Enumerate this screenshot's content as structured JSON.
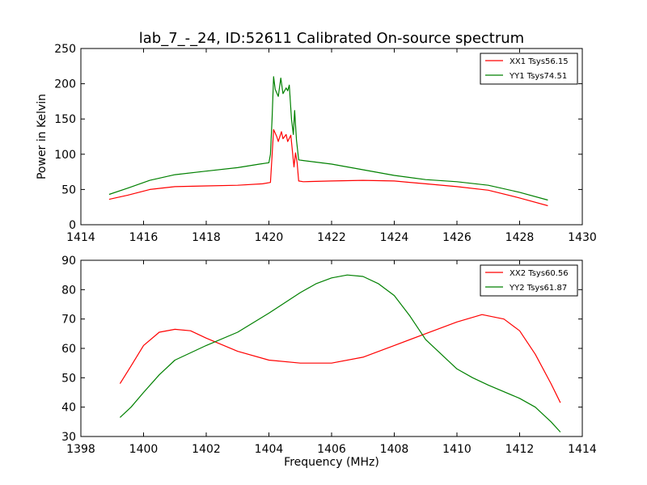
{
  "figure_title": "lab_7_-_24, ID:52611 Calibrated On-source spectrum",
  "chart_data": [
    {
      "type": "line",
      "title": "",
      "xlabel": "",
      "ylabel": "Power in Kelvin",
      "xlim": [
        1414,
        1430
      ],
      "ylim": [
        0,
        250
      ],
      "xticks": [
        "1414",
        "1416",
        "1418",
        "1420",
        "1422",
        "1424",
        "1426",
        "1428",
        "1430"
      ],
      "yticks": [
        "0",
        "50",
        "100",
        "150",
        "200",
        "250"
      ],
      "grid": false,
      "legend_position": "top-right",
      "series": [
        {
          "name": "XX1 Tsys56.15",
          "color": "#ff0000",
          "points": [
            [
              1414.9,
              36
            ],
            [
              1415.5,
              42
            ],
            [
              1416.2,
              50
            ],
            [
              1417,
              54
            ],
            [
              1418,
              55
            ],
            [
              1419,
              56
            ],
            [
              1419.8,
              58
            ],
            [
              1420.05,
              60
            ],
            [
              1420.1,
              98
            ],
            [
              1420.15,
              135
            ],
            [
              1420.25,
              125
            ],
            [
              1420.3,
              118
            ],
            [
              1420.4,
              132
            ],
            [
              1420.45,
              122
            ],
            [
              1420.55,
              128
            ],
            [
              1420.6,
              118
            ],
            [
              1420.7,
              127
            ],
            [
              1420.75,
              104
            ],
            [
              1420.8,
              82
            ],
            [
              1420.85,
              102
            ],
            [
              1420.9,
              88
            ],
            [
              1420.95,
              62
            ],
            [
              1421.1,
              61
            ],
            [
              1422,
              62
            ],
            [
              1423,
              63
            ],
            [
              1424,
              62
            ],
            [
              1425,
              58
            ],
            [
              1426,
              54
            ],
            [
              1427,
              49
            ],
            [
              1428,
              38
            ],
            [
              1428.9,
              27
            ]
          ]
        },
        {
          "name": "YY1 Tsys74.51",
          "color": "#008000",
          "points": [
            [
              1414.9,
              43
            ],
            [
              1415.5,
              52
            ],
            [
              1416.2,
              63
            ],
            [
              1417,
              71
            ],
            [
              1418,
              76
            ],
            [
              1419,
              81
            ],
            [
              1419.7,
              86
            ],
            [
              1420.0,
              88
            ],
            [
              1420.05,
              100
            ],
            [
              1420.1,
              150
            ],
            [
              1420.15,
              210
            ],
            [
              1420.2,
              192
            ],
            [
              1420.3,
              182
            ],
            [
              1420.38,
              208
            ],
            [
              1420.45,
              186
            ],
            [
              1420.55,
              194
            ],
            [
              1420.6,
              190
            ],
            [
              1420.65,
              198
            ],
            [
              1420.72,
              150
            ],
            [
              1420.78,
              128
            ],
            [
              1420.82,
              162
            ],
            [
              1420.88,
              120
            ],
            [
              1420.95,
              92
            ],
            [
              1421.1,
              91
            ],
            [
              1422,
              86
            ],
            [
              1423,
              78
            ],
            [
              1424,
              70
            ],
            [
              1425,
              64
            ],
            [
              1426,
              61
            ],
            [
              1427,
              56
            ],
            [
              1428,
              46
            ],
            [
              1428.9,
              35
            ]
          ]
        }
      ]
    },
    {
      "type": "line",
      "title": "",
      "xlabel": "Frequency (MHz)",
      "ylabel": "",
      "xlim": [
        1398,
        1414
      ],
      "ylim": [
        30,
        90
      ],
      "xticks": [
        "1398",
        "1400",
        "1402",
        "1404",
        "1406",
        "1408",
        "1410",
        "1412",
        "1414"
      ],
      "yticks": [
        "30",
        "40",
        "50",
        "60",
        "70",
        "80",
        "90"
      ],
      "grid": false,
      "legend_position": "top-right",
      "series": [
        {
          "name": "XX2 Tsys60.56",
          "color": "#ff0000",
          "points": [
            [
              1399.25,
              48
            ],
            [
              1399.6,
              54
            ],
            [
              1400,
              61
            ],
            [
              1400.5,
              65.5
            ],
            [
              1401,
              66.5
            ],
            [
              1401.5,
              66
            ],
            [
              1402,
              63.5
            ],
            [
              1403,
              59
            ],
            [
              1404,
              56
            ],
            [
              1405,
              55
            ],
            [
              1406,
              55
            ],
            [
              1407,
              57
            ],
            [
              1408,
              61
            ],
            [
              1409,
              65
            ],
            [
              1410,
              69
            ],
            [
              1410.8,
              71.5
            ],
            [
              1411.5,
              70
            ],
            [
              1412,
              66
            ],
            [
              1412.5,
              58
            ],
            [
              1413,
              48
            ],
            [
              1413.3,
              41.5
            ]
          ]
        },
        {
          "name": "YY2 Tsys61.87",
          "color": "#008000",
          "points": [
            [
              1399.25,
              36.5
            ],
            [
              1399.6,
              40
            ],
            [
              1400,
              45
            ],
            [
              1400.5,
              51
            ],
            [
              1401,
              56
            ],
            [
              1402,
              61
            ],
            [
              1403,
              65.5
            ],
            [
              1404,
              72
            ],
            [
              1405,
              79
            ],
            [
              1405.5,
              82
            ],
            [
              1406,
              84
            ],
            [
              1406.5,
              85
            ],
            [
              1407,
              84.5
            ],
            [
              1407.5,
              82
            ],
            [
              1408,
              78
            ],
            [
              1408.5,
              71
            ],
            [
              1409,
              63
            ],
            [
              1410,
              53
            ],
            [
              1410.5,
              50
            ],
            [
              1411,
              47.5
            ],
            [
              1412,
              43
            ],
            [
              1412.5,
              40
            ],
            [
              1413,
              35
            ],
            [
              1413.3,
              31.5
            ]
          ]
        }
      ]
    }
  ]
}
